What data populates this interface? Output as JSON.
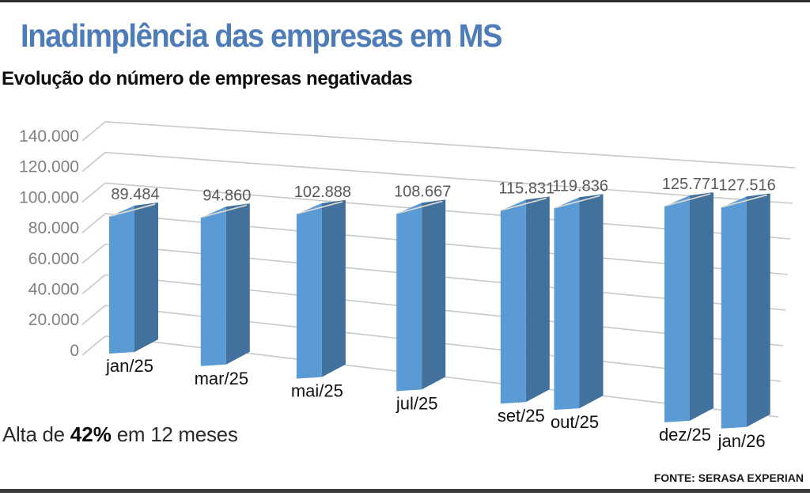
{
  "page": {
    "title": "Inadimplência das empresas em MS",
    "subtitle": "Evolução do número de empresas negativadas",
    "note": {
      "prefix": "Alta de ",
      "highlight": "42%",
      "suffix": " em 12 meses"
    },
    "source": "FONTE: SERASA EXPERIAN"
  },
  "colors": {
    "title_blue": "#4d7cb8",
    "bar_front": "#5b9bd5",
    "bar_side": "#41719c",
    "bar_top": "#4f86c0",
    "bar_streak": "#ded9cf",
    "gridline": "#c8c8c8",
    "axis_label": "#808080",
    "value_label": "#595959",
    "category_label": "#111111",
    "rule_dark": "#3a3a3a"
  },
  "chart_data": {
    "type": "bar",
    "style": "3d-column",
    "title": "Evolução do número de empresas negativadas",
    "categories": [
      "jan/25",
      "mar/25",
      "mai/25",
      "jul/25",
      "set/25",
      "out/25",
      "dez/25",
      "jan/26"
    ],
    "values": [
      89484,
      94860,
      102888,
      108667,
      115831,
      119836,
      125771,
      127516
    ],
    "value_labels": [
      "89.484",
      "94.860",
      "102.888",
      "108.667",
      "115.831",
      "119.836",
      "125.771",
      "127.516"
    ],
    "month_offsets": [
      0,
      2,
      4,
      6,
      8,
      9,
      11,
      12
    ],
    "x_axis_time_proportional": true,
    "y_ticks": [
      "140.000",
      "120.000",
      "100.000",
      "80.000",
      "60.000",
      "40.000",
      "20.000",
      "0"
    ],
    "ylim": [
      0,
      140000
    ],
    "y_step": 20000,
    "grid": true,
    "legend": false,
    "series_name": "Empresas negativadas"
  }
}
